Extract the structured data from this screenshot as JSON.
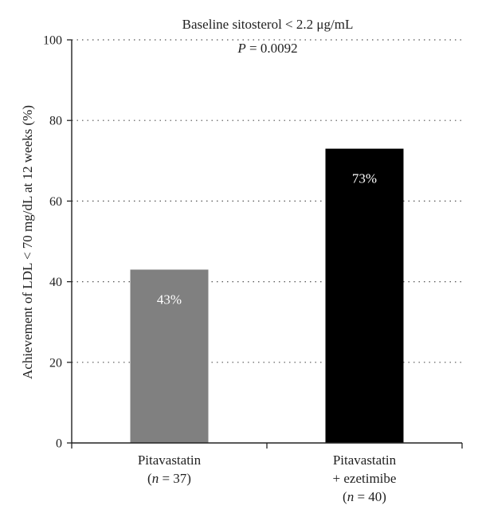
{
  "chart_data": {
    "type": "bar",
    "title": "Baseline sitosterol < 2.2 μg/mL",
    "annotation": {
      "italic_part": "P",
      "rest": " = 0.0092"
    },
    "ylabel": "Achievement of LDL < 70 mg/dL at 12 weeks (%)",
    "ylim": [
      0,
      100
    ],
    "yticks": [
      "0",
      "20",
      "40",
      "60",
      "80",
      "100"
    ],
    "grid": "dotted horizontal",
    "categories": [
      {
        "lines": [
          "Pitavastatin",
          "(n = 37)"
        ],
        "n_italic": "n",
        "n_rest": " = 37"
      },
      {
        "lines": [
          "Pitavastatin",
          "+ ezetimibe",
          "(n = 40)"
        ],
        "n_italic": "n",
        "n_rest": " = 40"
      }
    ],
    "values": [
      43,
      73
    ],
    "data_labels": [
      "43%",
      "73%"
    ],
    "colors": [
      "#808080",
      "#000000"
    ]
  }
}
